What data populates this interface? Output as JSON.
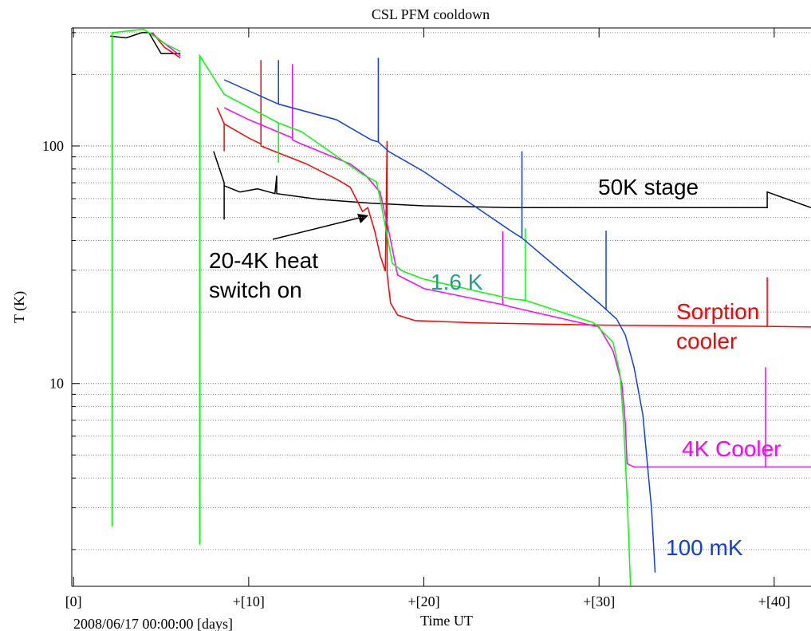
{
  "chart_data": {
    "type": "line",
    "title": "CSL PFM cooldown",
    "ylabel": "T (K)",
    "xlabel": "Time UT",
    "xsublabel": "2008/06/17 00:00:00 [days]",
    "xlim": [
      -0.1,
      42.1
    ],
    "xticks": [
      {
        "value": 0,
        "label": "[0]"
      },
      {
        "value": 10,
        "label": "+[10]"
      },
      {
        "value": 20,
        "label": "+[20]"
      },
      {
        "value": 30,
        "label": "+[30]"
      },
      {
        "value": 40,
        "label": "+[40]"
      }
    ],
    "ylim": [
      1.4,
      314
    ],
    "ylog": true,
    "yticks": [
      10,
      100
    ],
    "yminor": [
      2,
      3,
      4,
      5,
      6,
      7,
      8,
      9,
      20,
      30,
      40,
      50,
      60,
      70,
      80,
      90,
      200,
      300
    ],
    "grid": true,
    "series": [
      {
        "color": "#000000",
        "x": [
          2.1,
          3.0,
          3.9,
          4.3,
          5.0,
          6.1,
          7.5,
          8.0,
          8.6,
          8.6,
          8.6,
          9.5,
          10.5,
          11.5,
          11.6,
          11.6,
          14,
          17,
          20,
          25,
          30,
          35,
          39.6,
          39.6,
          42.1
        ],
        "values": [
          290,
          285,
          300,
          300,
          245,
          245,
          null,
          95,
          70,
          49,
          68,
          64,
          66,
          63,
          75,
          63,
          59.6,
          57.4,
          56,
          55,
          55,
          55,
          55,
          64,
          55
        ]
      },
      {
        "color": "#ff0000",
        "x": [
          4.5,
          5.2,
          6.1,
          7.4,
          8.2,
          8.6,
          8.6,
          8.6,
          10,
          10.7,
          10.7,
          10.7,
          13.3,
          15.1,
          15.8,
          16.5,
          16.8,
          17.2,
          17.5,
          17.8,
          17.9,
          17.9,
          18.1,
          18.5,
          19.5,
          23,
          30.4,
          39.6,
          39.6,
          39.6,
          42.1
        ],
        "values": [
          300,
          260,
          235,
          null,
          145,
          124,
          95,
          124,
          108,
          102,
          230,
          100,
          84,
          72,
          67,
          53,
          55,
          43.7,
          34.7,
          29.7,
          105,
          29,
          21.8,
          19.4,
          18.4,
          18,
          17.6,
          17.4,
          28,
          17.4,
          17.3
        ]
      },
      {
        "color": "#ff00ff",
        "x": [
          4.4,
          5.2,
          6.1,
          7.4,
          8.6,
          10,
          12.5,
          12.5,
          12.5,
          13,
          15.8,
          16.7,
          17.5,
          18,
          18.5,
          20,
          24.5,
          24.5,
          24.5,
          25,
          30,
          30.8,
          31.3,
          31.5,
          31.6,
          32,
          38,
          39.5,
          39.5,
          39.5,
          42.1
        ],
        "values": [
          300,
          270,
          240,
          null,
          145,
          129,
          108,
          221,
          106,
          102,
          84,
          75,
          64,
          43.7,
          28.6,
          25.1,
          21.5,
          43.7,
          21.5,
          21,
          17.3,
          13.7,
          10,
          6.8,
          4.6,
          4.45,
          4.45,
          4.45,
          11.7,
          4.45,
          4.45
        ]
      },
      {
        "color": "#00ff00",
        "x": [
          2.2,
          2.2,
          2.2,
          4.0,
          4.6,
          5.2,
          6.1,
          7.2,
          7.2,
          7.2,
          8.6,
          11.7,
          11.7,
          11.7,
          13,
          16.5,
          17.3,
          17.6,
          18.2,
          18.8,
          20,
          25,
          25.8,
          25.8,
          25.8,
          29.7,
          30.8,
          31.2,
          31.4,
          31.6,
          31.8
        ],
        "values": [
          300,
          2.5,
          300,
          310,
          290,
          270,
          250,
          null,
          2.1,
          240,
          165,
          125,
          85,
          125,
          115,
          76,
          70.6,
          55,
          32,
          29.7,
          27.5,
          22.7,
          22.4,
          45,
          22.4,
          18,
          14.9,
          10.9,
          6.8,
          3.4,
          1.41
        ]
      },
      {
        "color": "#1040e0",
        "x": [
          8.6,
          11.7,
          11.7,
          11.7,
          15,
          17,
          17.4,
          17.4,
          17.4,
          18,
          20,
          25,
          25.6,
          25.6,
          25.6,
          30,
          30.4,
          30.4,
          30.4,
          31,
          31.5,
          32,
          32.5,
          33,
          33.2
        ],
        "values": [
          190,
          150,
          230,
          150,
          129,
          106,
          104,
          235,
          104,
          94.7,
          78,
          43.7,
          41,
          95,
          41,
          21.8,
          20.5,
          44,
          20.5,
          18.7,
          16,
          11.7,
          7.4,
          2.95,
          1.6
        ]
      }
    ],
    "annotations": [
      {
        "lines": [
          "50K stage"
        ],
        "color": "#000000"
      },
      {
        "lines": [
          "20-4K heat",
          "switch on"
        ],
        "color": "#000000"
      },
      {
        "lines": [
          "1.6 K"
        ],
        "color": "#20a090"
      },
      {
        "lines": [
          "Sorption",
          "cooler"
        ],
        "color": "#ff0000"
      },
      {
        "lines": [
          "4K Cooler"
        ],
        "color": "#ff00ff"
      },
      {
        "lines": [
          "100 mK"
        ],
        "color": "#1040e0"
      }
    ]
  }
}
